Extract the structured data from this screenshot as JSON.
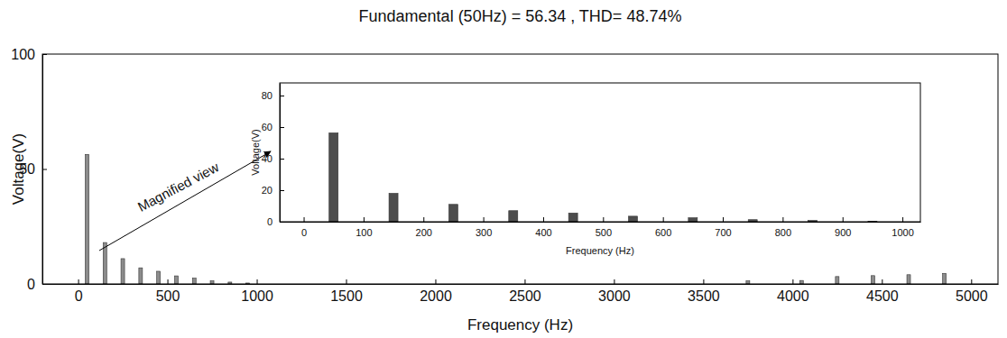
{
  "chart_data": [
    {
      "type": "bar",
      "title": "Fundamental (50Hz) = 56.34 , THD= 48.74%",
      "x_label": "Frequency (Hz)",
      "y_label": "Voltage(V)",
      "annotation": "Magnified view",
      "x": [
        50,
        150,
        250,
        350,
        450,
        550,
        650,
        750,
        850,
        950,
        3750,
        4050,
        4250,
        4450,
        4650,
        4850
      ],
      "values": [
        56.34,
        18,
        11,
        7,
        5.5,
        3.5,
        2.5,
        1.3,
        0.8,
        0.4,
        1.3,
        1.5,
        3.2,
        3.6,
        4,
        4.6
      ],
      "color": "#8c8c8c",
      "xlim": [
        -200,
        5150
      ],
      "ylim": [
        0,
        100
      ],
      "xticks": [
        0,
        500,
        1000,
        1500,
        2000,
        2500,
        3000,
        3500,
        4000,
        4500,
        5000
      ],
      "yticks": [
        0,
        50,
        100
      ]
    },
    {
      "type": "bar",
      "x_label": "Frequency (Hz)",
      "y_label": "Voltage(V)",
      "x": [
        50,
        150,
        250,
        350,
        450,
        550,
        650,
        750,
        850,
        950
      ],
      "values": [
        56.34,
        18,
        11,
        7,
        5.5,
        3.5,
        2.5,
        1.3,
        0.8,
        0.4
      ],
      "color": "#4d4d4d",
      "xlim": [
        -40,
        1030
      ],
      "ylim": [
        0,
        88
      ],
      "xticks": [
        0,
        100,
        200,
        300,
        400,
        500,
        600,
        700,
        800,
        900,
        1000
      ],
      "yticks": [
        0,
        20,
        40,
        60,
        80
      ]
    }
  ]
}
